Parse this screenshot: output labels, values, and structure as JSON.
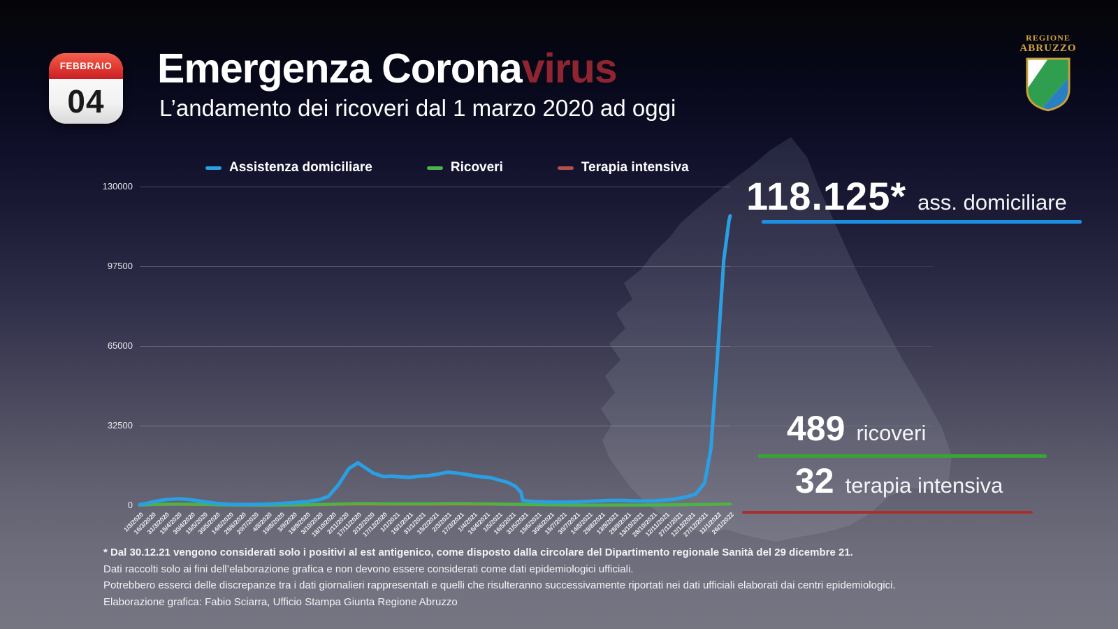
{
  "header": {
    "calendar": {
      "month": "FEBBRAIO",
      "day": "04"
    },
    "title_main": "Emergenza Corona",
    "title_accent": "virus",
    "subtitle": "L’andamento dei ricoveri dal 1 marzo 2020 ad oggi"
  },
  "logo": {
    "line1": "REGIONE",
    "line2": "ABRUZZO"
  },
  "colors": {
    "blue": "#2b9fe4",
    "green": "#4db348",
    "green_dark": "#3aa33a",
    "red": "#b2514d",
    "red_dark": "#a8302c",
    "title_accent_red": "#8e2530",
    "logo_gold": "#d2a53d"
  },
  "legend": [
    {
      "label": "Assistenza domiciliare",
      "color": "#2b9fe4"
    },
    {
      "label": "Ricoveri",
      "color": "#4db348"
    },
    {
      "label": "Terapia intensiva",
      "color": "#b2514d"
    }
  ],
  "callouts": [
    {
      "value": "118.125*",
      "label": "ass. domiciliare",
      "color": "#1d8fe0"
    },
    {
      "value": "489",
      "label": "ricoveri",
      "color": "#3aa33a"
    },
    {
      "value": "32",
      "label": "terapia intensiva",
      "color": "#a8302c"
    }
  ],
  "footnotes": [
    "* Dal 30.12.21 vengono considerati solo i positivi al est antigenico, come disposto dalla circolare del Dipartimento regionale Sanità del 29 dicembre 21.",
    "Dati raccolti solo ai fini dell’elaborazione grafica e non devono essere considerati come dati epidemiologici ufficiali.",
    "Potrebbero esserci delle discrepanze tra i dati giornalieri rappresentati e quelli che risulteranno successivamente riportati nei dati ufficiali elaborati dai centri epidemiologici.",
    "Elaborazione grafica: Fabio Sciarra, Ufficio Stampa Giunta Regione Abruzzo"
  ],
  "chart_data": {
    "type": "line",
    "title": "L’andamento dei ricoveri dal 1 marzo 2020 ad oggi",
    "ylim": [
      0,
      130000
    ],
    "yticks": [
      0,
      32500,
      65000,
      97500,
      130000
    ],
    "grid": true,
    "legend_position": "top",
    "x_labels": [
      "1/3/2020",
      "16/3/2020",
      "31/3/2020",
      "15/4/2020",
      "30/4/2020",
      "15/5/2020",
      "30/5/2020",
      "14/6/2020",
      "29/6/2020",
      "20/7/2020",
      "4/8/2020",
      "19/8/2020",
      "3/9/2020",
      "18/9/2020",
      "3/10/2020",
      "18/10/2020",
      "2/11/2020",
      "17/11/2020",
      "2/12/2020",
      "17/12/2020",
      "1/1/2021",
      "16/1/2021",
      "31/1/2021",
      "15/2/2021",
      "2/3/2021",
      "17/3/2021",
      "1/4/2021",
      "16/4/2021",
      "1/5/2021",
      "16/5/2021",
      "31/5/2021",
      "15/6/2021",
      "30/6/2021",
      "15/7/2021",
      "30/7/2021",
      "14/8/2021",
      "29/8/2021",
      "13/9/2021",
      "28/9/2021",
      "13/10/2021",
      "28/10/2021",
      "12/11/2021",
      "27/11/2021",
      "12/12/2021",
      "27/12/2021",
      "11/1/2022",
      "26/1/2022"
    ],
    "series": [
      {
        "id": "terapia-intensiva",
        "name": "Terapia intensiva",
        "color": "#b2514d",
        "width": 2.5,
        "final_value": 32,
        "points": [
          [
            0,
            10
          ],
          [
            2,
            55
          ],
          [
            4,
            70
          ],
          [
            6,
            40
          ],
          [
            8,
            15
          ],
          [
            10,
            8
          ],
          [
            12,
            15
          ],
          [
            14,
            30
          ],
          [
            16,
            55
          ],
          [
            17,
            68
          ],
          [
            19,
            62
          ],
          [
            22,
            55
          ],
          [
            24,
            65
          ],
          [
            26,
            60
          ],
          [
            28,
            50
          ],
          [
            30,
            38
          ],
          [
            32,
            25
          ],
          [
            34,
            12
          ],
          [
            36,
            10
          ],
          [
            38,
            12
          ],
          [
            40,
            15
          ],
          [
            42,
            20
          ],
          [
            44,
            22
          ],
          [
            46,
            32
          ]
        ]
      },
      {
        "id": "ricoveri",
        "name": "Ricoveri",
        "color": "#4db348",
        "width": 4.5,
        "final_value": 489,
        "points": [
          [
            0,
            80
          ],
          [
            1,
            300
          ],
          [
            2,
            430
          ],
          [
            3,
            460
          ],
          [
            4,
            420
          ],
          [
            5,
            330
          ],
          [
            6,
            230
          ],
          [
            7,
            130
          ],
          [
            8,
            70
          ],
          [
            9,
            60
          ],
          [
            10,
            80
          ],
          [
            11,
            110
          ],
          [
            12,
            150
          ],
          [
            13,
            210
          ],
          [
            14,
            300
          ],
          [
            15,
            430
          ],
          [
            16,
            580
          ],
          [
            17,
            690
          ],
          [
            18,
            640
          ],
          [
            19,
            600
          ],
          [
            20,
            580
          ],
          [
            21,
            560
          ],
          [
            22,
            580
          ],
          [
            23,
            610
          ],
          [
            24,
            640
          ],
          [
            25,
            620
          ],
          [
            26,
            590
          ],
          [
            27,
            560
          ],
          [
            28,
            500
          ],
          [
            29,
            430
          ],
          [
            30,
            350
          ],
          [
            31,
            280
          ],
          [
            32,
            210
          ],
          [
            33,
            130
          ],
          [
            34,
            80
          ],
          [
            35,
            70
          ],
          [
            36,
            90
          ],
          [
            37,
            100
          ],
          [
            38,
            110
          ],
          [
            39,
            110
          ],
          [
            40,
            130
          ],
          [
            41,
            170
          ],
          [
            42,
            230
          ],
          [
            43,
            300
          ],
          [
            44,
            360
          ],
          [
            45,
            430
          ],
          [
            46,
            489
          ]
        ]
      },
      {
        "id": "assistenza-domiciliare",
        "name": "Assistenza domiciliare",
        "color": "#2b9fe4",
        "width": 5,
        "final_value": 118125,
        "points": [
          [
            0,
            250
          ],
          [
            0.5,
            700
          ],
          [
            1,
            1400
          ],
          [
            2,
            2300
          ],
          [
            3,
            2650
          ],
          [
            3.6,
            2500
          ],
          [
            4,
            2250
          ],
          [
            5,
            1500
          ],
          [
            6,
            750
          ],
          [
            7,
            420
          ],
          [
            8,
            300
          ],
          [
            9,
            330
          ],
          [
            10,
            480
          ],
          [
            11,
            750
          ],
          [
            12,
            1050
          ],
          [
            13,
            1500
          ],
          [
            14,
            2300
          ],
          [
            14.7,
            3600
          ],
          [
            15.5,
            8500
          ],
          [
            16.3,
            15000
          ],
          [
            17,
            17300
          ],
          [
            17.6,
            15200
          ],
          [
            18.2,
            13100
          ],
          [
            19,
            11700
          ],
          [
            19.6,
            11900
          ],
          [
            20.2,
            11600
          ],
          [
            21,
            11400
          ],
          [
            21.8,
            11900
          ],
          [
            22.5,
            12100
          ],
          [
            23.2,
            12700
          ],
          [
            24,
            13500
          ],
          [
            24.6,
            13200
          ],
          [
            25.2,
            12800
          ],
          [
            26,
            12100
          ],
          [
            26.6,
            11600
          ],
          [
            27.3,
            11300
          ],
          [
            28,
            10300
          ],
          [
            28.7,
            9300
          ],
          [
            29.3,
            7600
          ],
          [
            29.7,
            5300
          ],
          [
            29.85,
            1900
          ],
          [
            30.5,
            1600
          ],
          [
            31.5,
            1400
          ],
          [
            32.5,
            1300
          ],
          [
            33.5,
            1350
          ],
          [
            34.5,
            1500
          ],
          [
            35.5,
            1700
          ],
          [
            36.5,
            1900
          ],
          [
            37.5,
            2000
          ],
          [
            38.5,
            1800
          ],
          [
            39.5,
            1700
          ],
          [
            40.5,
            1900
          ],
          [
            41.5,
            2400
          ],
          [
            42.5,
            3300
          ],
          [
            43.3,
            4500
          ],
          [
            44,
            9000
          ],
          [
            44.5,
            23000
          ],
          [
            45,
            60000
          ],
          [
            45.5,
            100000
          ],
          [
            45.9,
            116000
          ],
          [
            46,
            118125
          ]
        ]
      }
    ]
  }
}
